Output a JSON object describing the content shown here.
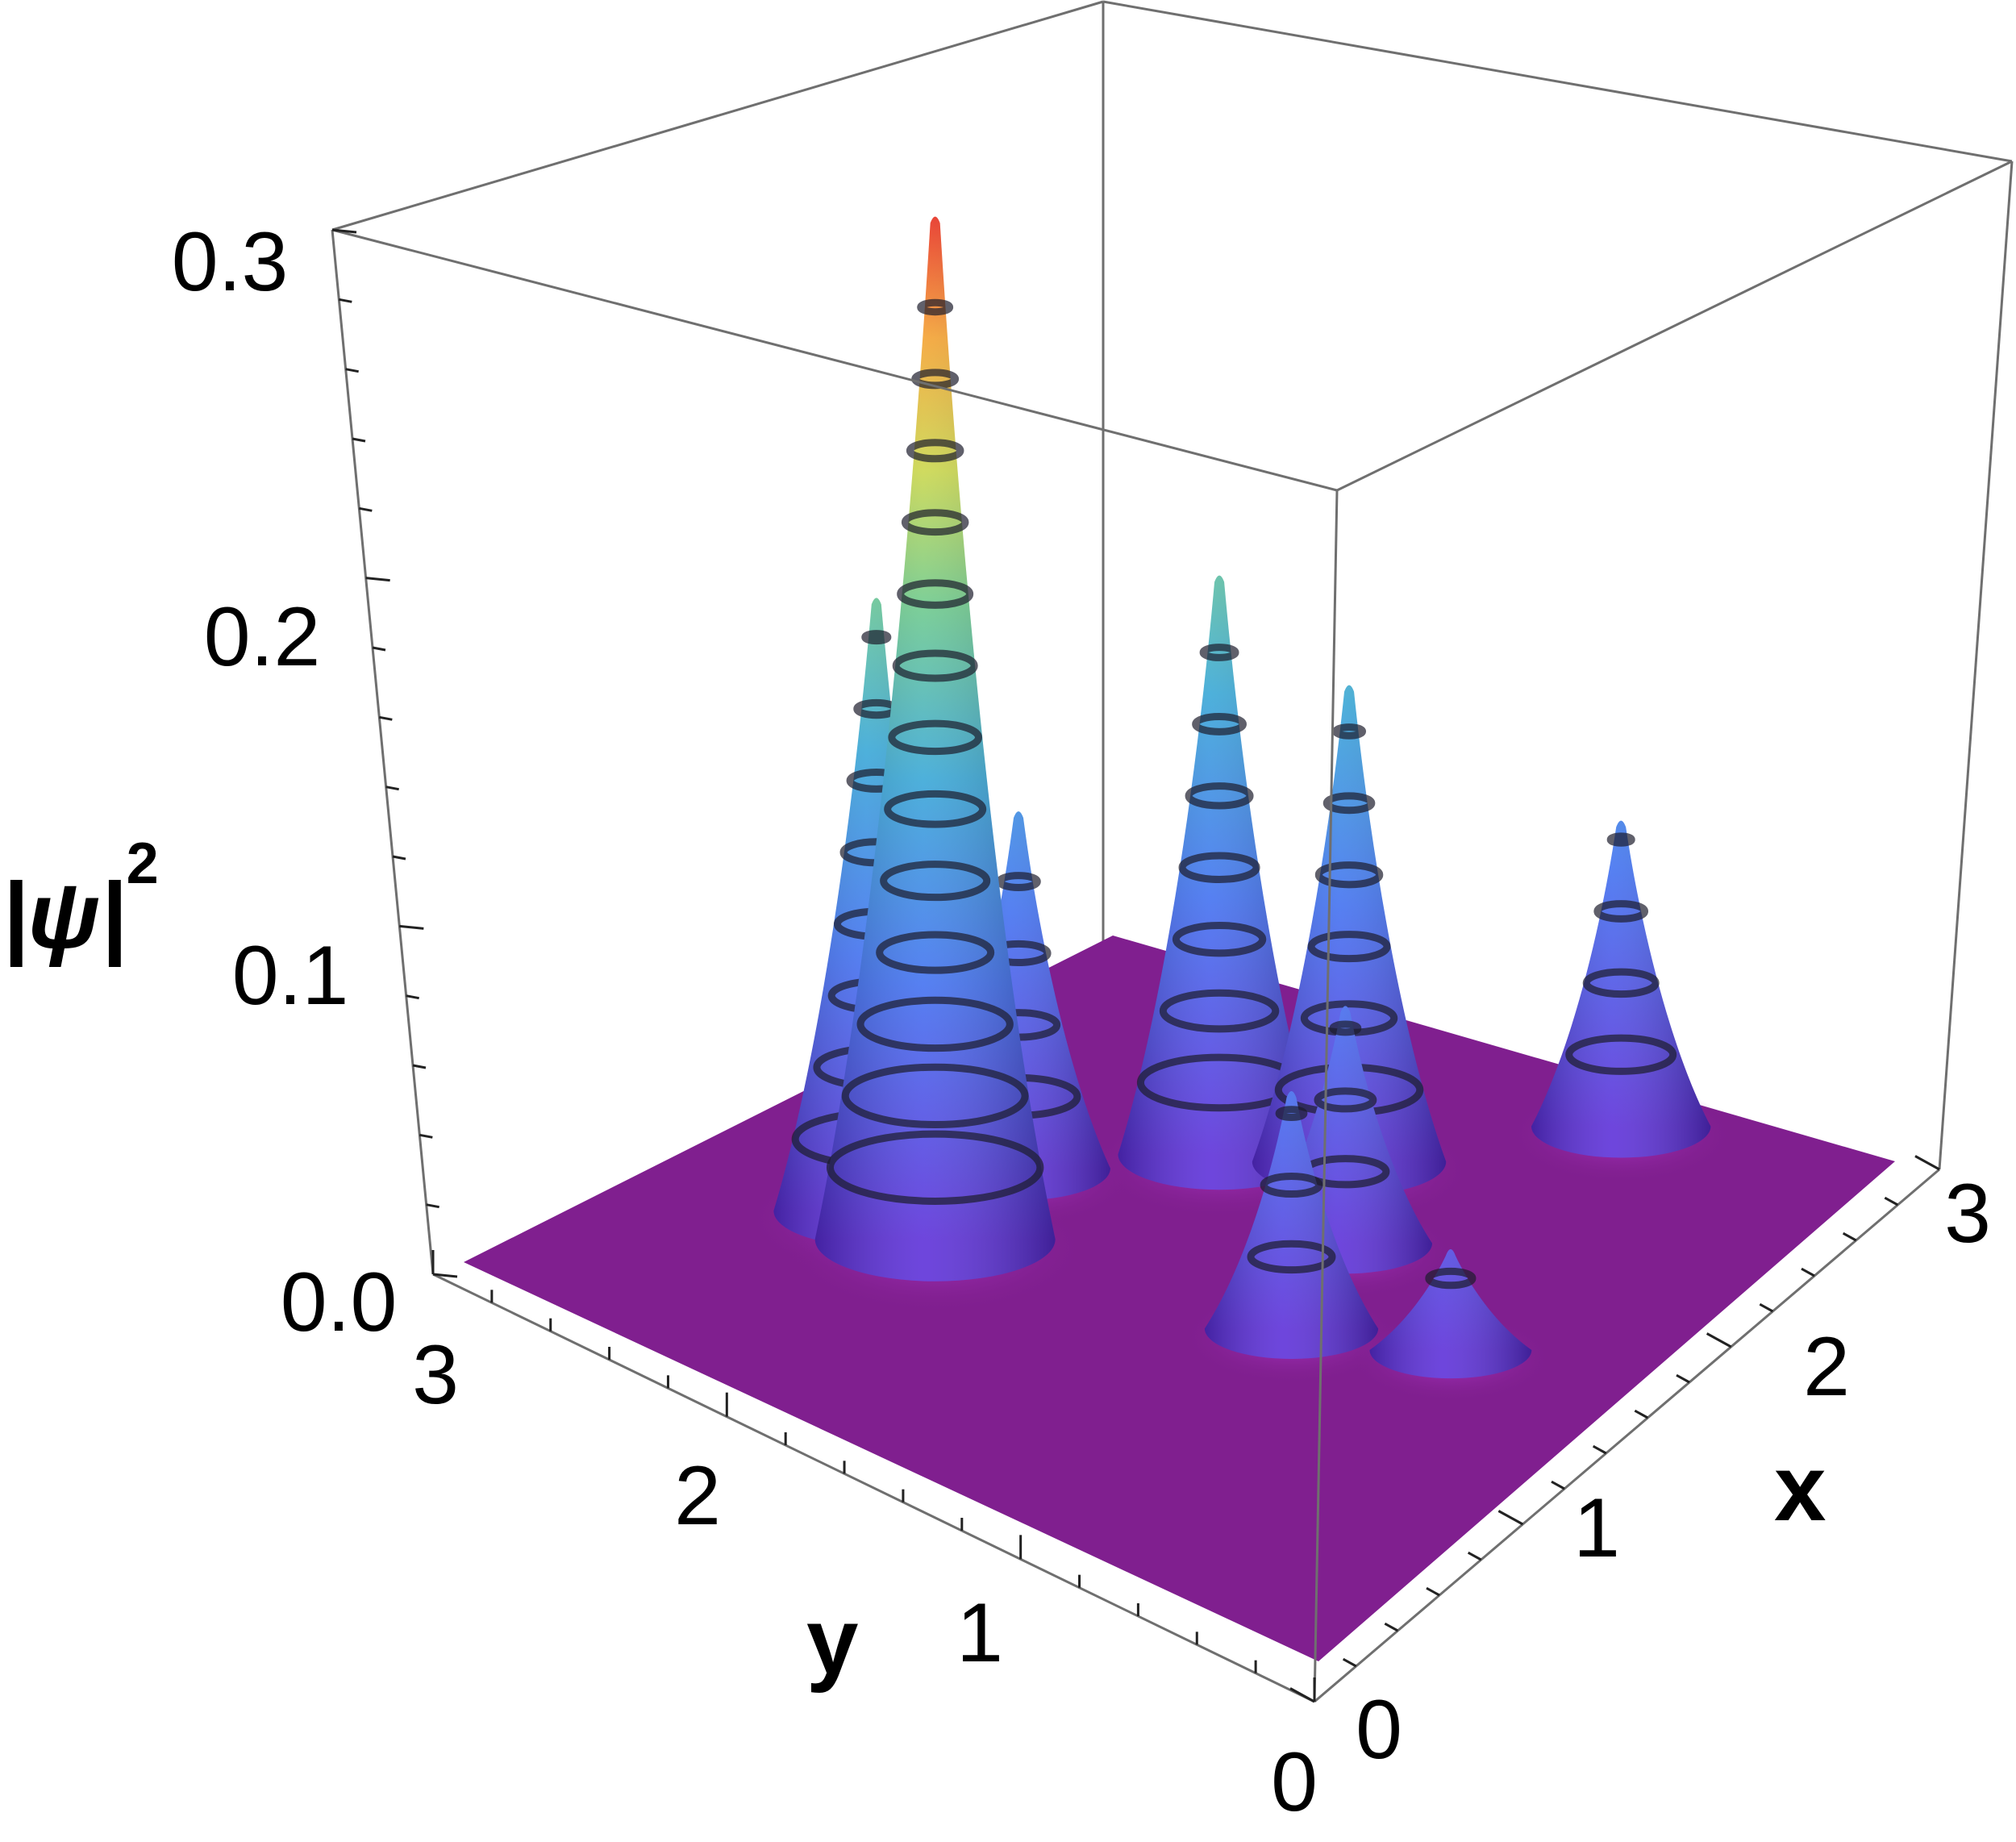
{
  "chart_data": {
    "type": "surface3d",
    "title": "",
    "xlabel": "x",
    "ylabel": "y",
    "zlabel_base": "|ψ|",
    "zlabel_exp": "2",
    "xlim": [
      0,
      3
    ],
    "ylim": [
      0,
      3
    ],
    "zlim": [
      0,
      0.3
    ],
    "x_ticks": [
      "0",
      "1",
      "2",
      "3"
    ],
    "y_ticks": [
      "0",
      "1",
      "2",
      "3"
    ],
    "z_ticks": [
      "0.0",
      "0.1",
      "0.2",
      "0.3"
    ],
    "peaks": [
      {
        "x": 1.0,
        "y": 2.0,
        "z": 0.3
      },
      {
        "x": 1.0,
        "y": 2.2,
        "z": 0.18
      },
      {
        "x": 1.8,
        "y": 1.6,
        "z": 0.17
      },
      {
        "x": 1.4,
        "y": 2.0,
        "z": 0.105
      },
      {
        "x": 2.0,
        "y": 1.3,
        "z": 0.14
      },
      {
        "x": 1.7,
        "y": 1.1,
        "z": 0.07
      },
      {
        "x": 1.3,
        "y": 1.0,
        "z": 0.07
      },
      {
        "x": 1.5,
        "y": 0.6,
        "z": 0.03
      },
      {
        "x": 2.6,
        "y": 0.8,
        "z": 0.09
      }
    ],
    "colormap": "rainbow (purple low → red high)",
    "base_color": "#801f8f",
    "contour_lines": true
  }
}
